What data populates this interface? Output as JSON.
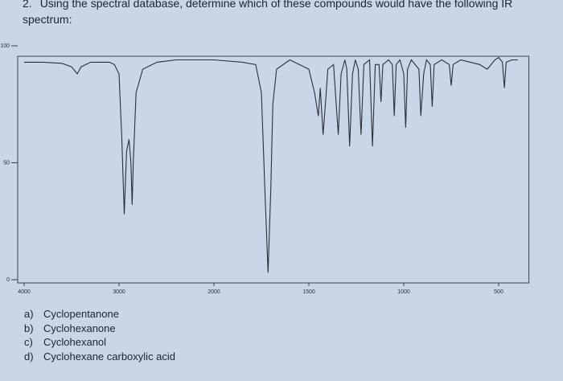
{
  "question": {
    "number": "2.",
    "text": "Using the spectral database, determine which of these compounds would have the following IR spectrum:"
  },
  "chart_data": {
    "type": "line",
    "x": [
      4000,
      3800,
      3600,
      3500,
      3440,
      3400,
      3300,
      3100,
      3050,
      3000,
      2970,
      2945,
      2920,
      2895,
      2875,
      2862,
      2850,
      2820,
      2750,
      2600,
      2400,
      2200,
      2000,
      1850,
      1780,
      1750,
      1730,
      1715,
      1700,
      1690,
      1670,
      1600,
      1500,
      1470,
      1450,
      1440,
      1425,
      1410,
      1400,
      1370,
      1345,
      1330,
      1310,
      1300,
      1285,
      1270,
      1255,
      1240,
      1225,
      1210,
      1180,
      1165,
      1150,
      1130,
      1120,
      1110,
      1080,
      1060,
      1050,
      1040,
      1020,
      1000,
      990,
      980,
      960,
      920,
      910,
      895,
      880,
      860,
      850,
      840,
      800,
      760,
      750,
      740,
      700,
      600,
      560,
      520,
      500,
      480,
      470,
      460,
      430,
      400
    ],
    "values": [
      93,
      93,
      92.5,
      91,
      88,
      91,
      93,
      93,
      92,
      88,
      60,
      28,
      55,
      60,
      50,
      32,
      50,
      80,
      90,
      93,
      94,
      94,
      94,
      93,
      92,
      80,
      35,
      3,
      40,
      75,
      90,
      94,
      90,
      80,
      70,
      82,
      62,
      78,
      90,
      92,
      62,
      88,
      94,
      90,
      57,
      88,
      94,
      90,
      62,
      92,
      94,
      57,
      92,
      92,
      76,
      92,
      94,
      92,
      70,
      92,
      94,
      88,
      65,
      90,
      94,
      90,
      70,
      88,
      94,
      92,
      74,
      92,
      94,
      92,
      83,
      92,
      94,
      92,
      90,
      94,
      95,
      93,
      82,
      93,
      94,
      94
    ],
    "color": "#2a2f3a",
    "xlim": [
      4000,
      400
    ],
    "xticks": [
      4000,
      3000,
      2000,
      1500,
      1000,
      500
    ],
    "ylim": [
      0,
      100
    ],
    "yticks": [
      0,
      50,
      100
    ]
  },
  "options": [
    {
      "letter": "a)",
      "text": "Cyclopentanone"
    },
    {
      "letter": "b)",
      "text": "Cyclohexanone"
    },
    {
      "letter": "c)",
      "text": "Cyclohexanol"
    },
    {
      "letter": "d)",
      "text": "Cyclohexane carboxylic acid"
    }
  ]
}
